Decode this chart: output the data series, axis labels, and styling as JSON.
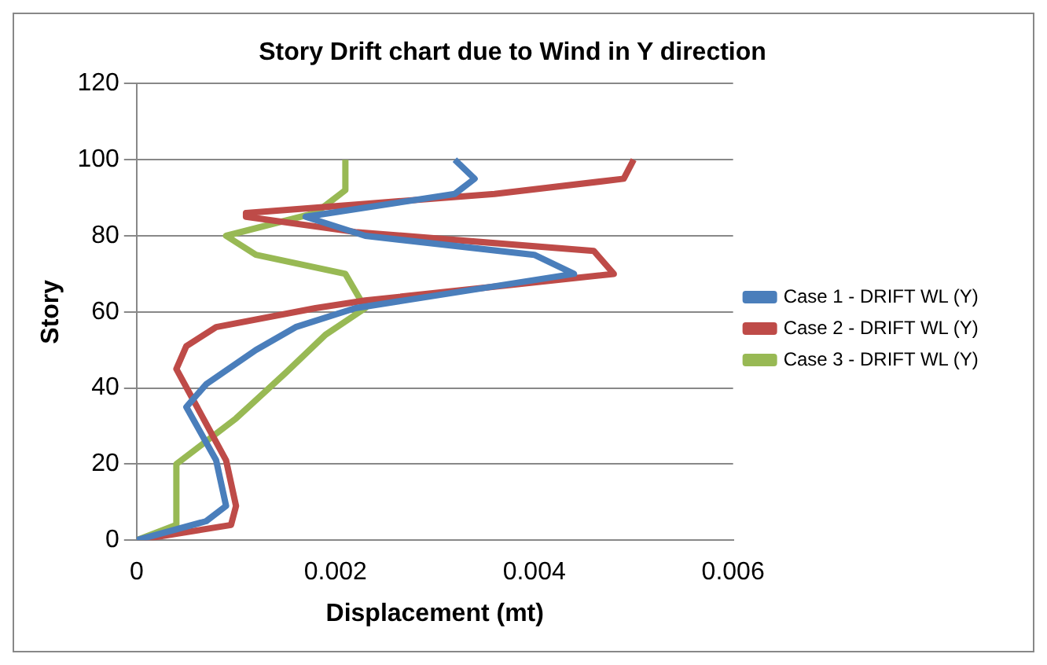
{
  "chart_data": {
    "type": "line",
    "title": "Story Drift chart due to Wind in Y direction",
    "xlabel": "Displacement (mt)",
    "ylabel": "Story",
    "xlim": [
      0,
      0.006
    ],
    "xticks": [
      0,
      0.002,
      0.004,
      0.006
    ],
    "ylim": [
      0,
      120
    ],
    "yticks": [
      0,
      20,
      40,
      60,
      80,
      100,
      120
    ],
    "grid": "y",
    "legend": "right",
    "marker": "none",
    "series": [
      {
        "name": "Case 1 - DRIFT WL (Y)",
        "color": "#4a7ebb",
        "x": [
          0,
          0.0007,
          0.0009,
          0.0008,
          0.0005,
          0.0007,
          0.0012,
          0.0016,
          0.0022,
          0.0044,
          0.004,
          0.0023,
          0.0017,
          0.0032,
          0.0034,
          0.0032
        ],
        "values": [
          0,
          5,
          9,
          21,
          35,
          41,
          50,
          56,
          61,
          70,
          75,
          80,
          85,
          91,
          95,
          100
        ]
      },
      {
        "name": "Case 2 - DRIFT WL (Y)",
        "color": "#be4b48",
        "x": [
          0,
          0.00095,
          0.001,
          0.0009,
          0.0004,
          0.0005,
          0.0008,
          0.0018,
          0.0023,
          0.0048,
          0.0046,
          0.0022,
          0.0011,
          0.0011,
          0.0036,
          0.0049,
          0.005
        ],
        "values": [
          0,
          4,
          9,
          21,
          45,
          51,
          56,
          61,
          63,
          70,
          76,
          81,
          85,
          86,
          91,
          95,
          100
        ]
      },
      {
        "name": "Case 3 - DRIFT WL (Y)",
        "color": "#98b954",
        "x": [
          0,
          0.0004,
          0.0004,
          0.001,
          0.0015,
          0.0019,
          0.0023,
          0.0021,
          0.0012,
          0.0009,
          0.0018,
          0.0021,
          0.0021
        ],
        "values": [
          0,
          4,
          20,
          32,
          44,
          54,
          61,
          70,
          75,
          80,
          86,
          92,
          100
        ]
      }
    ]
  }
}
